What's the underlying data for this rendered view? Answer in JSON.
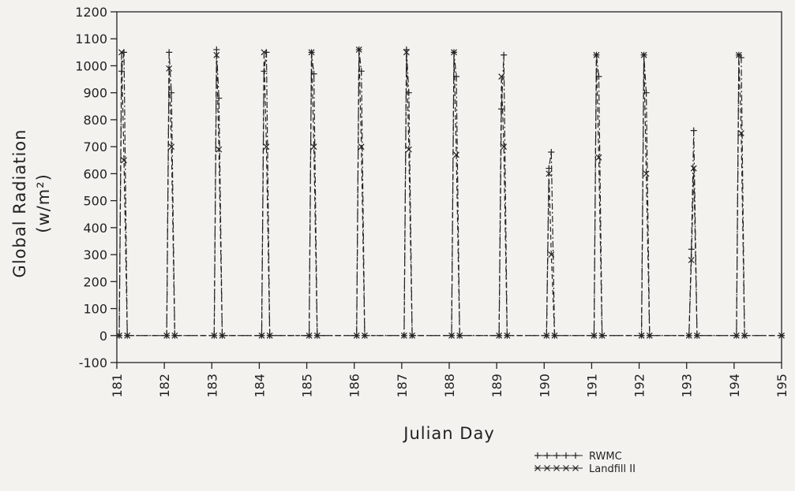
{
  "chart_data": {
    "type": "line",
    "xlabel": "Julian Day",
    "ylabel": [
      "Global Radiation",
      "(w/m²)"
    ],
    "xlim": [
      181,
      195
    ],
    "xticks": [
      181,
      182,
      183,
      184,
      185,
      186,
      187,
      188,
      189,
      190,
      191,
      192,
      193,
      194,
      195
    ],
    "ylim": [
      -100,
      1200
    ],
    "yticks": [
      -100,
      0,
      100,
      200,
      300,
      400,
      500,
      600,
      700,
      800,
      900,
      1000,
      1100,
      1200
    ],
    "x": [
      181.05,
      181.1,
      181.15,
      181.22,
      182.05,
      182.1,
      182.15,
      182.22,
      183.05,
      183.1,
      183.15,
      183.22,
      184.05,
      184.1,
      184.15,
      184.22,
      185.05,
      185.1,
      185.15,
      185.22,
      186.05,
      186.1,
      186.15,
      186.22,
      187.05,
      187.1,
      187.15,
      187.22,
      188.05,
      188.1,
      188.15,
      188.22,
      189.05,
      189.1,
      189.15,
      189.22,
      190.05,
      190.1,
      190.15,
      190.22,
      191.05,
      191.1,
      191.15,
      191.22,
      192.05,
      192.1,
      192.15,
      192.22,
      193.05,
      193.1,
      193.15,
      193.22,
      194.05,
      194.1,
      194.15,
      194.22,
      195
    ],
    "series": [
      {
        "name": "RWMC",
        "color": "#222222",
        "marker": "plus",
        "dash": "8 3 2 3",
        "values": [
          0,
          980,
          1050,
          0,
          0,
          1050,
          900,
          0,
          0,
          1060,
          880,
          0,
          0,
          980,
          1050,
          0,
          0,
          1050,
          970,
          0,
          0,
          1060,
          980,
          0,
          0,
          1060,
          900,
          0,
          0,
          1050,
          960,
          0,
          0,
          840,
          1040,
          0,
          0,
          620,
          680,
          0,
          0,
          1040,
          960,
          0,
          0,
          1040,
          900,
          0,
          0,
          320,
          760,
          0,
          0,
          1040,
          1030,
          0,
          0
        ]
      },
      {
        "name": "Landfill II",
        "color": "#222222",
        "marker": "cross",
        "dash": "6 4",
        "values": [
          0,
          1050,
          650,
          0,
          0,
          990,
          700,
          0,
          0,
          1040,
          690,
          0,
          0,
          1050,
          700,
          0,
          0,
          1050,
          700,
          0,
          0,
          1060,
          700,
          0,
          0,
          1050,
          690,
          0,
          0,
          1050,
          670,
          0,
          0,
          960,
          700,
          0,
          0,
          600,
          300,
          0,
          0,
          1040,
          660,
          0,
          0,
          1040,
          600,
          0,
          0,
          280,
          620,
          0,
          0,
          1040,
          750,
          0,
          0
        ]
      }
    ]
  }
}
